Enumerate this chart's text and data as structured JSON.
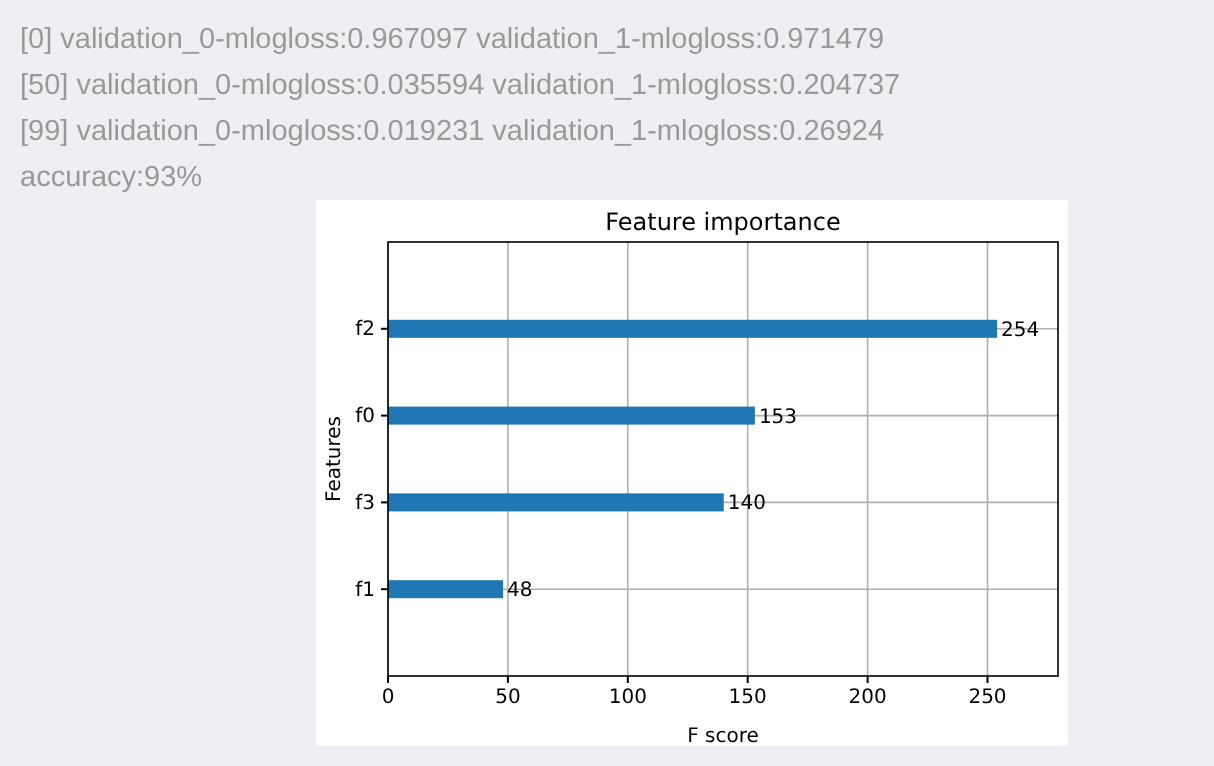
{
  "chart_data": {
    "type": "bar",
    "orientation": "horizontal",
    "title": "Feature importance",
    "xlabel": "F score",
    "ylabel": "Features",
    "categories": [
      "f2",
      "f0",
      "f3",
      "f1"
    ],
    "values": [
      254,
      153,
      140,
      48
    ],
    "color": "#1f77b4",
    "xlim": [
      0,
      279.4
    ],
    "xticks": [
      0,
      50,
      100,
      150,
      200,
      250
    ],
    "grid": true,
    "data_labels": true,
    "annotations": [
      "[0] validation_0-mlogloss:0.967097 validation_1-mlogloss:0.971479",
      "[50] validation_0-mlogloss:0.035594 validation_1-mlogloss:0.204737",
      "[99] validation_0-mlogloss:0.019231 validation_1-mlogloss:0.26924",
      "accuracy:93%"
    ]
  }
}
